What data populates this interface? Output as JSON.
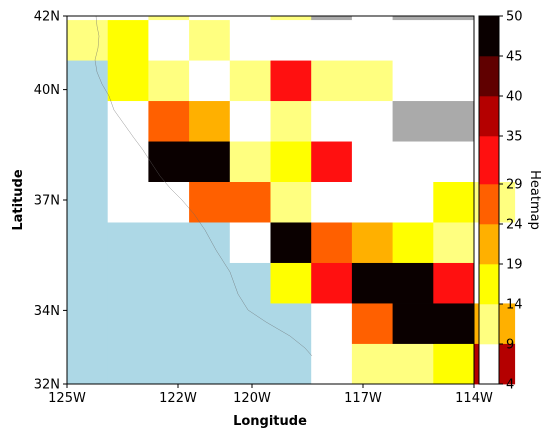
{
  "chart_data": {
    "type": "heatmap",
    "title": "",
    "xlabel": "Longitude",
    "ylabel": "Latitude",
    "colorbar_label": "Heatmap",
    "xlim": [
      -125,
      -114
    ],
    "ylim": [
      32,
      42
    ],
    "x_ticks": [
      -125,
      -122,
      -120,
      -117,
      -114
    ],
    "x_tick_labels": [
      "125W",
      "122W",
      "120W",
      "117W",
      "114W"
    ],
    "y_ticks": [
      32,
      34,
      37,
      40,
      42
    ],
    "y_tick_labels": [
      "32N",
      "34N",
      "37N",
      "40N",
      "42N"
    ],
    "grid_origin": {
      "lon": -125,
      "lat": 32
    },
    "cell_size_deg": 1.1,
    "ocean_color": "#add8e6",
    "no_data_color": "#aaaaaa",
    "colorbar": {
      "min": 4,
      "max": 50,
      "tick_values": [
        4,
        9,
        14,
        19,
        24,
        29,
        35,
        40,
        45,
        50
      ],
      "tick_labels": [
        "4",
        "9",
        "14",
        "19",
        "24",
        "29",
        "35",
        "40",
        "45",
        "50"
      ],
      "bins": [
        {
          "lo": 4,
          "hi": 9,
          "color": "#ffffff"
        },
        {
          "lo": 9,
          "hi": 14,
          "color": "#ffff80"
        },
        {
          "lo": 14,
          "hi": 19,
          "color": "#ffff00"
        },
        {
          "lo": 19,
          "hi": 24,
          "color": "#ffb000"
        },
        {
          "lo": 24,
          "hi": 29,
          "color": "#ff6000"
        },
        {
          "lo": 29,
          "hi": 35,
          "color": "#ff1010"
        },
        {
          "lo": 35,
          "hi": 40,
          "color": "#b40000"
        },
        {
          "lo": 40,
          "hi": 45,
          "color": "#600000"
        },
        {
          "lo": 45,
          "hi": 50,
          "color": "#0a0000"
        }
      ]
    },
    "rows_south_to_north": [
      [
        null,
        null,
        null,
        null,
        null,
        null,
        6,
        11,
        12,
        16,
        38
      ],
      [
        null,
        null,
        null,
        null,
        null,
        null,
        7,
        26,
        47,
        48,
        21
      ],
      [
        null,
        null,
        null,
        null,
        null,
        16,
        32,
        48,
        47,
        32,
        6
      ],
      [
        null,
        null,
        null,
        null,
        6,
        48,
        27,
        21,
        16,
        12,
        6
      ],
      [
        null,
        6,
        6,
        26,
        26,
        11,
        6,
        6,
        6,
        16,
        11
      ],
      [
        null,
        6,
        48,
        48,
        12,
        16,
        32,
        6,
        6,
        6,
        6
      ],
      [
        null,
        6,
        27,
        22,
        6,
        12,
        6,
        6,
        "nd",
        "nd",
        6
      ],
      [
        null,
        16,
        12,
        6,
        12,
        32,
        12,
        12,
        6,
        6,
        6
      ],
      [
        11,
        16,
        6,
        12,
        6,
        6,
        6,
        6,
        6,
        6,
        6
      ],
      [
        6,
        6,
        12,
        6,
        6,
        12,
        "nd",
        6,
        "nd",
        "nd",
        6
      ]
    ]
  }
}
